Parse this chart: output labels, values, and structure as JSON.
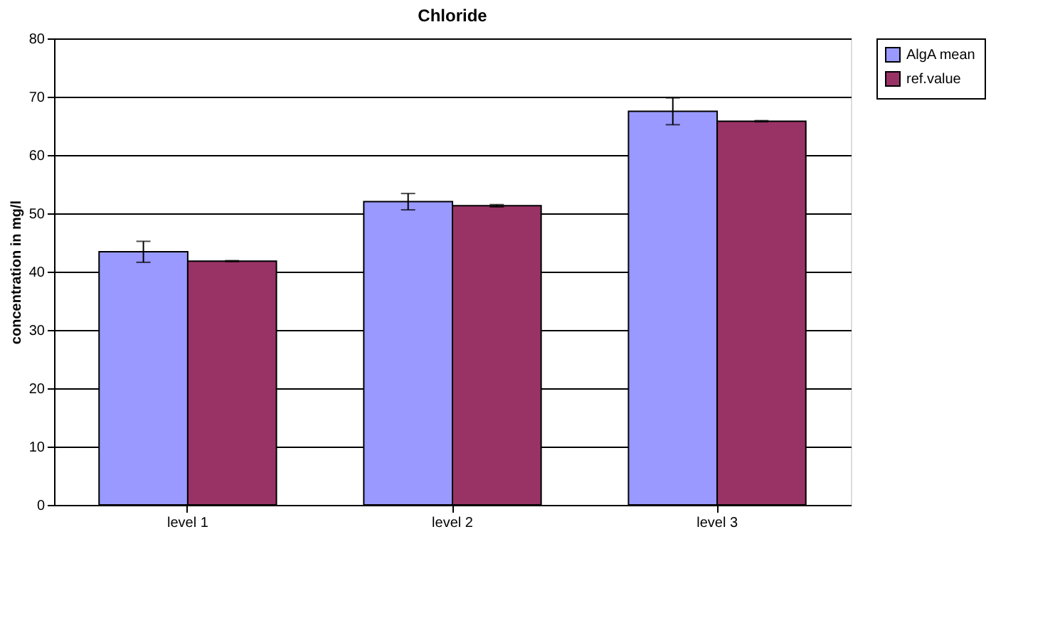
{
  "chart_data": {
    "type": "bar",
    "title": "Chloride",
    "ylabel": "concentration in mg/l",
    "categories": [
      "level 1",
      "level 2",
      "level 3"
    ],
    "series": [
      {
        "name": "AlgA mean",
        "color": "#9999ff",
        "values": [
          43.4,
          52.0,
          67.5
        ],
        "errors": [
          1.8,
          1.4,
          2.3
        ]
      },
      {
        "name": "ref.value",
        "color": "#993366",
        "values": [
          41.8,
          51.3,
          65.8
        ],
        "errors": [
          0.1,
          0.2,
          0.1
        ]
      }
    ],
    "ylim": [
      0,
      80
    ],
    "yticks": [
      0,
      10,
      20,
      30,
      40,
      50,
      60,
      70,
      80
    ],
    "grid": "y",
    "legend": "right"
  }
}
